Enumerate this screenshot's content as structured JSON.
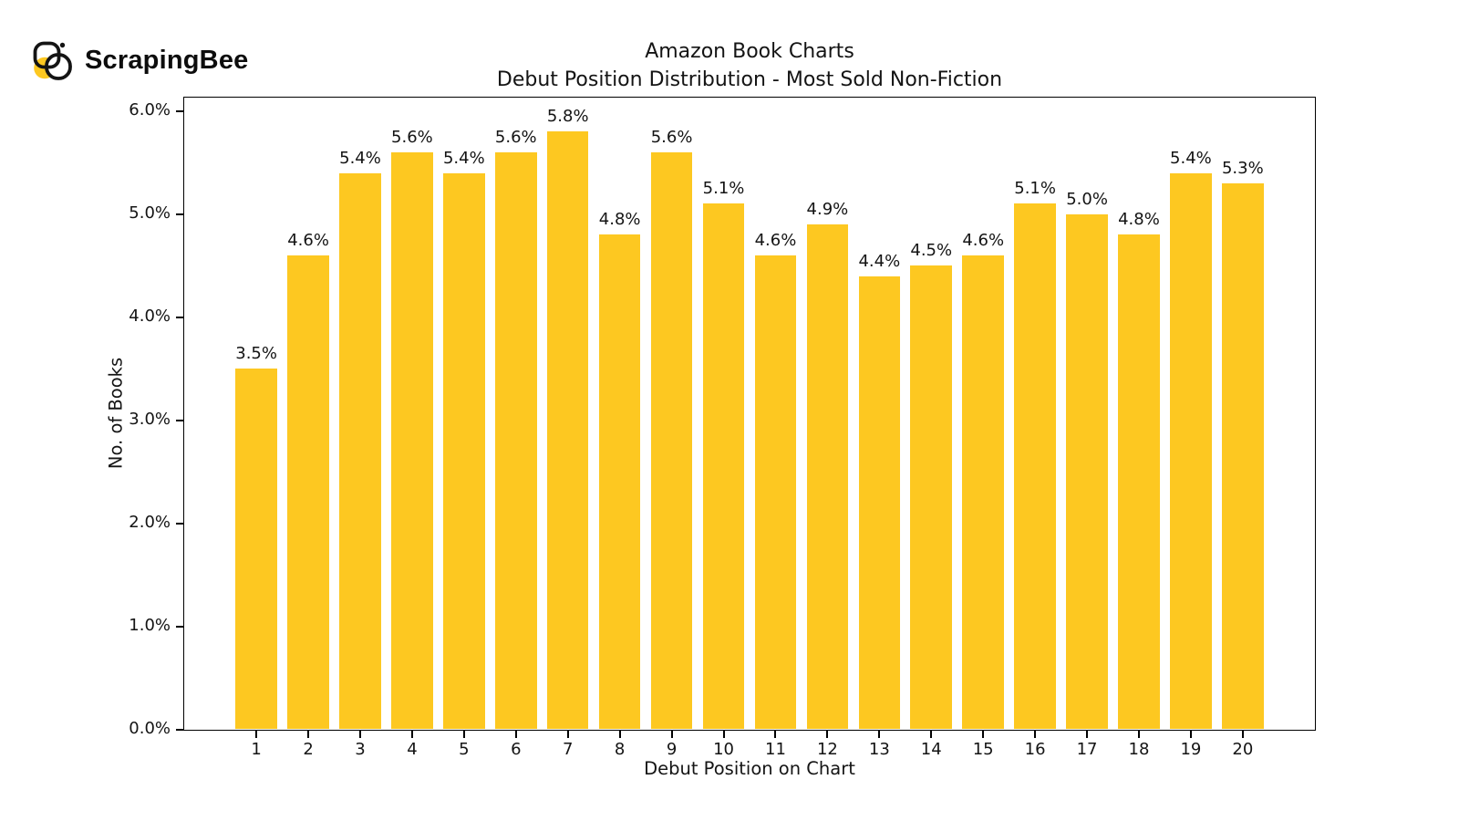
{
  "brand": {
    "logo_text": "ScrapingBee",
    "logo_icon": "scrapingbee-bee-icon",
    "logo_yellow": "#FDC821",
    "logo_black": "#141414"
  },
  "chart_data": {
    "type": "bar",
    "title": "Amazon Book Charts",
    "subtitle": "Debut Position Distribution - Most Sold Non-Fiction",
    "xlabel": "Debut Position on Chart",
    "ylabel": "No. of Books",
    "categories": [
      "1",
      "2",
      "3",
      "4",
      "5",
      "6",
      "7",
      "8",
      "9",
      "10",
      "11",
      "12",
      "13",
      "14",
      "15",
      "16",
      "17",
      "18",
      "19",
      "20"
    ],
    "values": [
      3.5,
      4.6,
      5.4,
      5.6,
      5.4,
      5.6,
      5.8,
      4.8,
      5.6,
      5.1,
      4.6,
      4.9,
      4.4,
      4.5,
      4.6,
      5.1,
      5.0,
      4.8,
      5.4,
      5.3
    ],
    "bar_labels": [
      "3.5%",
      "4.6%",
      "5.4%",
      "5.6%",
      "5.4%",
      "5.6%",
      "5.8%",
      "4.8%",
      "5.6%",
      "5.1%",
      "4.6%",
      "4.9%",
      "4.4%",
      "4.5%",
      "4.6%",
      "5.1%",
      "5.0%",
      "4.8%",
      "5.4%",
      "5.3%"
    ],
    "yticks": [
      {
        "value": 0.0,
        "label": "0.0%"
      },
      {
        "value": 1.0,
        "label": "1.0%"
      },
      {
        "value": 2.0,
        "label": "2.0%"
      },
      {
        "value": 3.0,
        "label": "3.0%"
      },
      {
        "value": 4.0,
        "label": "4.0%"
      },
      {
        "value": 5.0,
        "label": "5.0%"
      },
      {
        "value": 6.0,
        "label": "6.0%"
      }
    ],
    "ylim": [
      0,
      6.13
    ],
    "bar_color": "#FDC821",
    "grid": false,
    "legend": null
  }
}
